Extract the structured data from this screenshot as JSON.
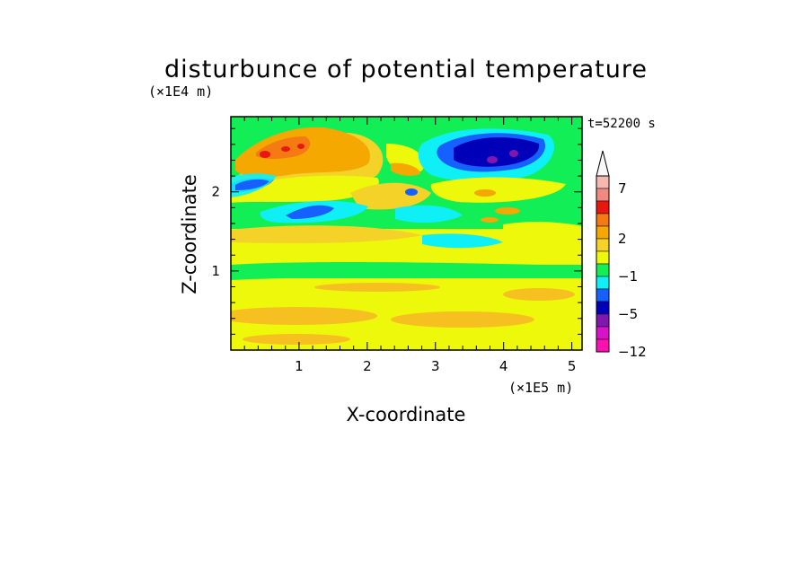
{
  "chart_data": {
    "type": "heatmap",
    "title": "disturbunce of potential temperature",
    "xlabel": "X-coordinate",
    "ylabel": "Z-coordinate",
    "x_multiplier": "(×1E5 m)",
    "y_multiplier": "(×1E4 m)",
    "time_label": "t=52200 s",
    "xlim": [
      0,
      5.15
    ],
    "ylim": [
      0,
      2.95
    ],
    "x_ticks": [
      "1",
      "2",
      "3",
      "4",
      "5"
    ],
    "y_ticks": [
      "1",
      "2"
    ],
    "colorbar": {
      "labels": [
        "7",
        "2",
        "−1",
        "−5",
        "−12"
      ],
      "bins": [
        {
          "lower": 7,
          "color": "#f4b8b0"
        },
        {
          "lower": 5,
          "color": "#f08a80"
        },
        {
          "lower": 4,
          "color": "#e8180e"
        },
        {
          "lower": 3,
          "color": "#f57a14"
        },
        {
          "lower": 2,
          "color": "#f5a800"
        },
        {
          "lower": 1,
          "color": "#f4d228"
        },
        {
          "lower": 0,
          "color": "#eef80a"
        },
        {
          "lower": -1,
          "color": "#12ee55"
        },
        {
          "lower": -2,
          "color": "#0ff0f6"
        },
        {
          "lower": -3,
          "color": "#1560ff"
        },
        {
          "lower": -5,
          "color": "#0000b8"
        },
        {
          "lower": -7,
          "color": "#8018b0"
        },
        {
          "lower": -9,
          "color": "#d812c8"
        },
        {
          "lower": -12,
          "color": "#ff10b0"
        }
      ],
      "upper_arrow_color": "#f8f8f8"
    },
    "regions": [
      {
        "x": [
          0,
          5.15
        ],
        "z": [
          0,
          0.95
        ],
        "value": 0.5
      },
      {
        "x": [
          0,
          5.15
        ],
        "z": [
          0.95,
          1.45
        ],
        "value": -0.5
      },
      {
        "x": [
          0,
          5.15
        ],
        "z": [
          1.45,
          2.95
        ],
        "value": -0.5
      },
      {
        "x": [
          0.3,
          1.8
        ],
        "z": [
          2.3,
          2.85
        ],
        "value": 2.5
      },
      {
        "x": [
          0.4,
          0.9
        ],
        "z": [
          2.4,
          2.6
        ],
        "value": 4.5
      },
      {
        "x": [
          3.3,
          4.9
        ],
        "z": [
          2.3,
          2.75
        ],
        "value": -4
      },
      {
        "x": [
          3.5,
          4.5
        ],
        "z": [
          2.35,
          2.6
        ],
        "value": -6
      },
      {
        "x": [
          3.9,
          4.2
        ],
        "z": [
          2.45,
          2.6
        ],
        "value": -8
      },
      {
        "x": [
          0.4,
          1.7
        ],
        "z": [
          1.65,
          1.85
        ],
        "value": -3
      },
      {
        "x": [
          0,
          0.7
        ],
        "z": [
          1.95,
          2.15
        ],
        "value": -4
      }
    ]
  }
}
